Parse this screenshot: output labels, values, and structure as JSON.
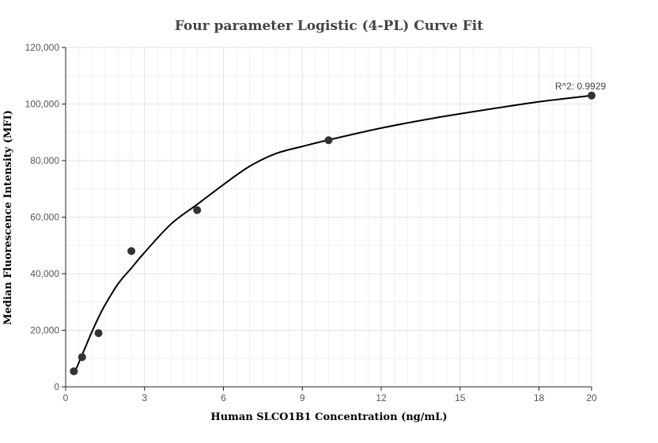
{
  "chart_data": {
    "type": "scatter",
    "title": "Four parameter Logistic (4-PL) Curve Fit",
    "xlabel": "Human SLCO1B1 Concentration (ng/mL)",
    "ylabel": "Median Fluorescence Intensity (MFI)",
    "xlim": [
      0,
      20
    ],
    "ylim": [
      0,
      120000
    ],
    "x_ticks": [
      0,
      3,
      6,
      9,
      12,
      15,
      18,
      20
    ],
    "y_ticks": [
      0,
      20000,
      40000,
      60000,
      80000,
      100000,
      120000
    ],
    "x_tick_labels": [
      "0",
      "3",
      "6",
      "9",
      "12",
      "15",
      "18",
      "20"
    ],
    "y_tick_labels": [
      "0",
      "20,000",
      "40,000",
      "60,000",
      "80,000",
      "100,000",
      "120,000"
    ],
    "grid": true,
    "points": {
      "x": [
        0.3125,
        0.625,
        1.25,
        2.5,
        5,
        10,
        20
      ],
      "y": [
        5500,
        10500,
        19000,
        48000,
        62500,
        87200,
        103000
      ]
    },
    "fit_curve": {
      "x": [
        0.3125,
        0.5,
        0.75,
        1.0,
        1.25,
        1.5,
        2.0,
        2.5,
        3.0,
        4.0,
        5.0,
        6.0,
        7.0,
        8.0,
        9.0,
        10.0,
        12.0,
        14.0,
        16.0,
        18.0,
        20.0
      ],
      "y": [
        4500,
        8500,
        14000,
        19500,
        24500,
        29000,
        36500,
        42000,
        47500,
        57500,
        64500,
        71500,
        78000,
        82500,
        85000,
        87300,
        91500,
        95000,
        98000,
        100800,
        103000
      ]
    },
    "annotation": {
      "text": "R^2: 0.9929"
    }
  }
}
